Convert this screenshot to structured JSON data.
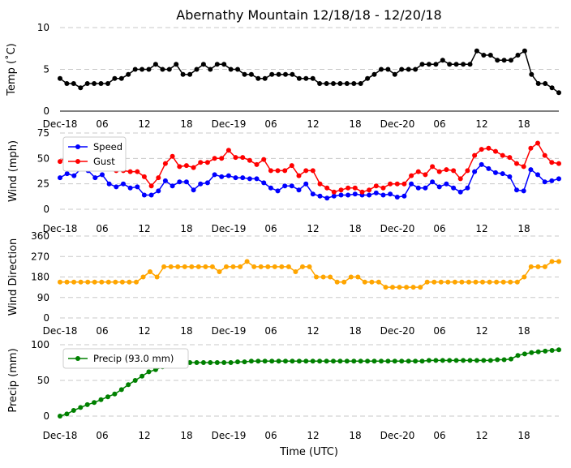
{
  "chart_data": {
    "title": "Abernathy Mountain 12/18/18 - 12/20/18",
    "xlabel": "Time (UTC)",
    "x_ticks": [
      "Dec-18",
      "06",
      "12",
      "18",
      "Dec-19",
      "06",
      "12",
      "18",
      "Dec-20",
      "06",
      "12",
      "18"
    ],
    "panels": [
      {
        "type": "line",
        "ylabel": "Temp (˚C)",
        "ylim": [
          0,
          10
        ],
        "yticks": [
          0,
          5,
          10
        ],
        "grid": true,
        "legend": false,
        "series": [
          {
            "color": "#000000",
            "values": [
              3.9,
              3.3,
              3.3,
              2.8,
              3.3,
              3.3,
              3.3,
              3.3,
              3.9,
              3.9,
              4.4,
              5.0,
              5.0,
              5.0,
              5.6,
              5.0,
              5.0,
              5.6,
              4.4,
              4.4,
              5.0,
              5.6,
              5.0,
              5.6,
              5.6,
              5.0,
              5.0,
              4.4,
              4.4,
              3.9,
              3.9,
              4.4,
              4.4,
              4.4,
              4.4,
              3.9,
              3.9,
              3.9,
              3.3,
              3.3,
              3.3,
              3.3,
              3.3,
              3.3,
              3.3,
              3.9,
              4.4,
              5.0,
              5.0,
              4.4,
              5.0,
              5.0,
              5.0,
              5.6,
              5.6,
              5.6,
              6.1,
              5.6,
              5.6,
              5.6,
              5.6,
              7.2,
              6.7,
              6.7,
              6.1,
              6.1,
              6.1,
              6.7,
              7.2,
              4.4,
              3.3,
              3.3,
              2.8,
              2.2
            ]
          }
        ]
      },
      {
        "type": "line",
        "ylabel": "Wind (mph)",
        "ylim": [
          0,
          75
        ],
        "yticks": [
          0,
          25,
          50,
          75
        ],
        "grid": true,
        "legend": "top-left",
        "series": [
          {
            "name": "Speed",
            "color": "#0000ff",
            "values": [
              31,
              35,
              33,
              40,
              38,
              31,
              34,
              25,
              22,
              25,
              21,
              22,
              14,
              14,
              18,
              28,
              23,
              27,
              27,
              19,
              25,
              26,
              34,
              32,
              33,
              31,
              31,
              30,
              30,
              26,
              21,
              18,
              23,
              23,
              19,
              25,
              15,
              13,
              11,
              13,
              14,
              14,
              15,
              14,
              14,
              16,
              14,
              15,
              12,
              13,
              25,
              21,
              21,
              27,
              22,
              25,
              21,
              17,
              21,
              37,
              44,
              40,
              36,
              35,
              32,
              19,
              18,
              39,
              34,
              27,
              28,
              30
            ]
          },
          {
            "name": "Gust",
            "color": "#ff0000",
            "values": [
              47,
              52,
              52,
              61,
              60,
              56,
              52,
              48,
              38,
              38,
              37,
              37,
              32,
              23,
              31,
              45,
              52,
              42,
              43,
              41,
              46,
              46,
              50,
              50,
              58,
              51,
              51,
              48,
              44,
              49,
              38,
              38,
              38,
              43,
              33,
              38,
              38,
              25,
              21,
              17,
              19,
              21,
              21,
              17,
              19,
              23,
              21,
              25,
              25,
              25,
              33,
              37,
              34,
              42,
              37,
              39,
              38,
              30,
              38,
              53,
              59,
              60,
              57,
              53,
              51,
              45,
              42,
              60,
              65,
              53,
              46,
              45
            ]
          }
        ]
      },
      {
        "type": "line",
        "ylabel": "Wind Direction",
        "ylim": [
          0,
          360
        ],
        "yticks": [
          0,
          90,
          180,
          270,
          360
        ],
        "grid": true,
        "legend": false,
        "series": [
          {
            "color": "#ffa500",
            "values": [
              158,
              158,
              158,
              158,
              158,
              158,
              158,
              158,
              158,
              158,
              158,
              158,
              180,
              203,
              180,
              225,
              225,
              225,
              225,
              225,
              225,
              225,
              225,
              203,
              225,
              225,
              225,
              248,
              225,
              225,
              225,
              225,
              225,
              225,
              203,
              225,
              225,
              180,
              180,
              180,
              158,
              158,
              180,
              180,
              158,
              158,
              158,
              135,
              135,
              135,
              135,
              135,
              135,
              158,
              158,
              158,
              158,
              158,
              158,
              158,
              158,
              158,
              158,
              158,
              158,
              158,
              158,
              180,
              225,
              225,
              225,
              248,
              248
            ]
          }
        ]
      },
      {
        "type": "line",
        "ylabel": "Precip (mm)",
        "ylim": [
          0,
          100
        ],
        "yticks": [
          0,
          50,
          100
        ],
        "grid": true,
        "legend": "top-left",
        "series": [
          {
            "name": "Precip (93.0 mm)",
            "color": "#008000",
            "values": [
              0,
              3,
              8,
              12,
              16,
              19,
              23,
              27,
              31,
              37,
              44,
              50,
              56,
              62,
              65,
              69,
              72,
              73,
              74,
              75,
              75,
              75,
              75,
              75,
              75,
              75,
              76,
              76,
              77,
              77,
              77,
              77,
              77,
              77,
              77,
              77,
              77,
              77,
              77,
              77,
              77,
              77,
              77,
              77,
              77,
              77,
              77,
              77,
              77,
              77,
              77,
              77,
              77,
              77,
              78,
              78,
              78,
              78,
              78,
              78,
              78,
              78,
              78,
              78,
              79,
              79,
              80,
              85,
              87,
              89,
              90,
              91,
              92,
              93
            ]
          }
        ]
      }
    ]
  }
}
